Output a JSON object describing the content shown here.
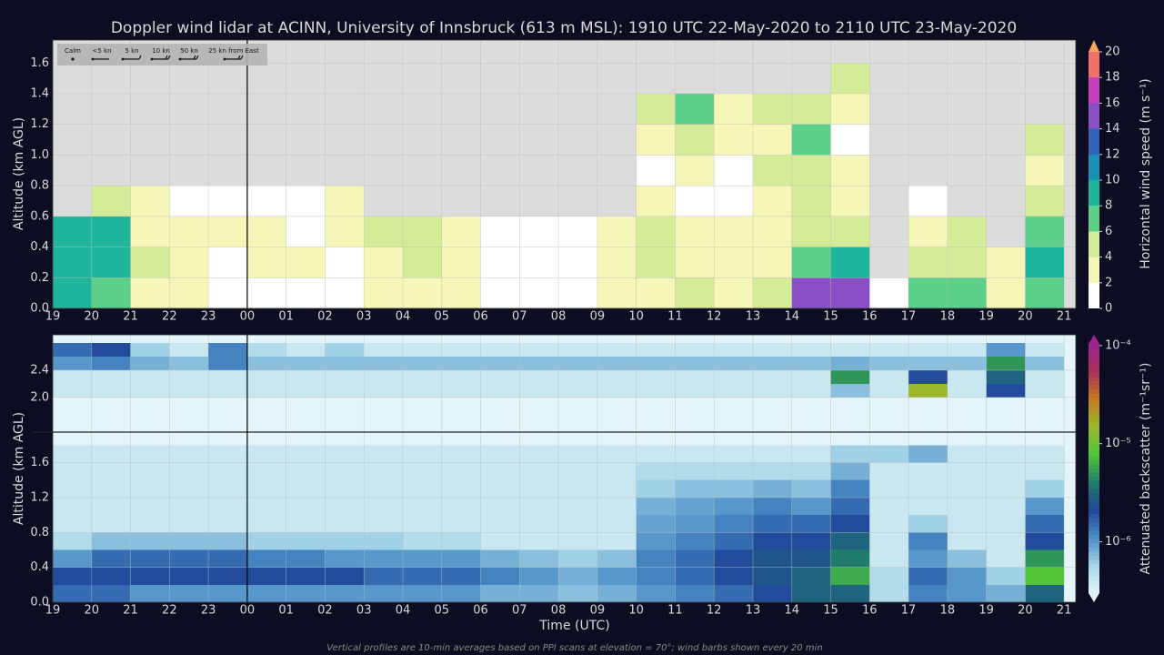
{
  "caption": "Vertical profiles are 10-min averages based on PPI scans at elevation = 70°; wind barbs shown every 20 min",
  "chart_data": [
    {
      "type": "heatmap",
      "title": "Doppler wind lidar at ACINN, University of Innsbruck (613 m MSL): 1910 UTC 22-May-2020 to 2110 UTC 23-May-2020",
      "ylabel": "Altitude (km AGL)",
      "clabel": "Horizontal wind speed (m s⁻¹)",
      "barb_legend": [
        "Calm",
        "<5 kn",
        "5 kn",
        "10 kn",
        "50 kn",
        "25 kn from East"
      ],
      "xlim": [
        19,
        45.3
      ],
      "xticks": [
        19,
        20,
        21,
        22,
        23,
        {
          "value": 24,
          "label": "00"
        },
        {
          "value": 25,
          "label": "01"
        },
        {
          "value": 26,
          "label": "02"
        },
        {
          "value": 27,
          "label": "03"
        },
        {
          "value": 28,
          "label": "04"
        },
        {
          "value": 29,
          "label": "05"
        },
        {
          "value": 30,
          "label": "06"
        },
        {
          "value": 31,
          "label": "07"
        },
        {
          "value": 32,
          "label": "08"
        },
        {
          "value": 33,
          "label": "09"
        },
        {
          "value": 34,
          "label": "10"
        },
        {
          "value": 35,
          "label": "11"
        },
        {
          "value": 36,
          "label": "12"
        },
        {
          "value": 37,
          "label": "13"
        },
        {
          "value": 38,
          "label": "14"
        },
        {
          "value": 39,
          "label": "15"
        },
        {
          "value": 40,
          "label": "16"
        },
        {
          "value": 41,
          "label": "17"
        },
        {
          "value": 42,
          "label": "18"
        },
        {
          "value": 43,
          "label": "19"
        },
        {
          "value": 44,
          "label": "20"
        },
        {
          "value": 45,
          "label": "21"
        }
      ],
      "ylim": [
        0,
        1.75
      ],
      "yticks": [
        {
          "value": 0,
          "label": "0.0"
        },
        0.2,
        0.4,
        0.6,
        0.8,
        {
          "value": 1,
          "label": "1.0"
        },
        1.2,
        1.4,
        1.6
      ],
      "grid": true,
      "vline": 24,
      "clim": [
        0,
        20
      ],
      "cticks": [
        0,
        2,
        4,
        6,
        8,
        10,
        12,
        14,
        16,
        18,
        20
      ],
      "log": false,
      "colors": [
        "#ffffff",
        "#f5f6b8",
        "#d4ec98",
        "#5ccf8a",
        "#1fb59c",
        "#1a8fb8",
        "#2f62b8",
        "#8a4fc4",
        "#c63fbf",
        "#f0706a"
      ],
      "extend_color": "#f7a55a",
      "x": [
        19.5,
        20.5,
        21.5,
        22.5,
        23.5,
        24.5,
        25.5,
        26.5,
        27.5,
        28.5,
        29.5,
        30.5,
        31.5,
        32.5,
        33.5,
        34.5,
        35.5,
        36.5,
        37.5,
        38.5,
        39.5,
        40.5,
        41.5,
        42.5,
        43.5,
        44.5
      ],
      "y": [
        0.1,
        0.3,
        0.5,
        0.7,
        0.9,
        1.1,
        1.3,
        1.5
      ],
      "values": [
        [
          8,
          9,
          8,
          null,
          null,
          null,
          null,
          null
        ],
        [
          6,
          8,
          9,
          5,
          null,
          null,
          null,
          null
        ],
        [
          3,
          4,
          3,
          2,
          null,
          null,
          null,
          null
        ],
        [
          2,
          3,
          2,
          1,
          null,
          null,
          null,
          null
        ],
        [
          1,
          1,
          2,
          1,
          null,
          null,
          null,
          null
        ],
        [
          1,
          2,
          2,
          1,
          null,
          null,
          null,
          null
        ],
        [
          1,
          2,
          1,
          1,
          null,
          null,
          null,
          null
        ],
        [
          1,
          1,
          2,
          3,
          null,
          null,
          null,
          null
        ],
        [
          2,
          3,
          4,
          null,
          null,
          null,
          null,
          null
        ],
        [
          3,
          5,
          4,
          null,
          null,
          null,
          null,
          null
        ],
        [
          2,
          3,
          2,
          null,
          null,
          null,
          null,
          null
        ],
        [
          1,
          1,
          1,
          null,
          null,
          null,
          null,
          null
        ],
        [
          1,
          1,
          1,
          null,
          null,
          null,
          null,
          null
        ],
        [
          1,
          1,
          1,
          null,
          null,
          null,
          null,
          null
        ],
        [
          2,
          3,
          3,
          null,
          null,
          null,
          null,
          null
        ],
        [
          3,
          4,
          4,
          2,
          1,
          3,
          5,
          null
        ],
        [
          4,
          3,
          2,
          1,
          2,
          4,
          6,
          null
        ],
        [
          3,
          2,
          2,
          1,
          1,
          3,
          3,
          null
        ],
        [
          4,
          3,
          3,
          3,
          4,
          3,
          4,
          null
        ],
        [
          14,
          6,
          5,
          4,
          5,
          6,
          4,
          null
        ],
        [
          15,
          9,
          4,
          2,
          2,
          1,
          3,
          4
        ],
        [
          1,
          null,
          null,
          null,
          null,
          null,
          null,
          null
        ],
        [
          6,
          5,
          3,
          1,
          null,
          null,
          null,
          null
        ],
        [
          6,
          5,
          4,
          null,
          null,
          null,
          null,
          null
        ],
        [
          3,
          3,
          null,
          null,
          null,
          null,
          null,
          null
        ],
        [
          7,
          8,
          6,
          4,
          3,
          4,
          null,
          null
        ]
      ]
    },
    {
      "type": "heatmap",
      "ylabel": "Altitude (km AGL)",
      "xlabel": "Time (UTC)",
      "clabel": "Attenuated backscatter (m⁻¹sr⁻¹)",
      "xlim": [
        19,
        45.3
      ],
      "xticks": [
        19,
        20,
        21,
        22,
        23,
        {
          "value": 24,
          "label": "00"
        },
        {
          "value": 25,
          "label": "01"
        },
        {
          "value": 26,
          "label": "02"
        },
        {
          "value": 27,
          "label": "03"
        },
        {
          "value": 28,
          "label": "04"
        },
        {
          "value": 29,
          "label": "05"
        },
        {
          "value": 30,
          "label": "06"
        },
        {
          "value": 31,
          "label": "07"
        },
        {
          "value": 32,
          "label": "08"
        },
        {
          "value": 33,
          "label": "09"
        },
        {
          "value": 34,
          "label": "10"
        },
        {
          "value": 35,
          "label": "11"
        },
        {
          "value": 36,
          "label": "12"
        },
        {
          "value": 37,
          "label": "13"
        },
        {
          "value": 38,
          "label": "14"
        },
        {
          "value": 39,
          "label": "15"
        },
        {
          "value": 40,
          "label": "16"
        },
        {
          "value": 41,
          "label": "17"
        },
        {
          "value": 42,
          "label": "18"
        },
        {
          "value": 43,
          "label": "19"
        },
        {
          "value": 44,
          "label": "20"
        },
        {
          "value": 45,
          "label": "21"
        }
      ],
      "ylim": [
        0,
        1.95
      ],
      "yticks": [
        {
          "value": 0,
          "label": "0.0"
        },
        0.4,
        0.8,
        1.2,
        1.6
      ],
      "ylim_upper": [
        1.49,
        2.92
      ],
      "yticks_upper": [
        {
          "value": 2,
          "label": "2.0"
        },
        2.4
      ],
      "grid": true,
      "vline": 24,
      "clim": [
        3e-07,
        0.000104
      ],
      "log": true,
      "cticks": [
        {
          "value": 1e-06,
          "label": "10⁻⁶"
        },
        {
          "value": 1e-05,
          "label": "10⁻⁵"
        },
        {
          "value": 0.0001,
          "label": "10⁻⁴"
        }
      ],
      "colors": [
        "#e4f4f8",
        "#a6d6e8",
        "#4a8cc6",
        "#1f4697",
        "#1f7f6a",
        "#4fc63a",
        "#9bb82a",
        "#c47a1e",
        "#a8305a",
        "#9a2490"
      ],
      "x": [
        19.5,
        20.5,
        21.5,
        22.5,
        23.5,
        24.5,
        25.5,
        26.5,
        27.5,
        28.5,
        29.5,
        30.5,
        31.5,
        32.5,
        33.5,
        34.5,
        35.5,
        36.5,
        37.5,
        38.5,
        39.5,
        40.5,
        41.5,
        42.5,
        43.5,
        44.5
      ],
      "y": [
        0.1,
        0.3,
        0.5,
        0.7,
        0.9,
        1.1,
        1.3,
        1.5,
        1.7,
        2.1,
        2.3,
        2.5,
        2.7
      ],
      "values": [
        [
          1.5e-06,
          2e-06,
          1e-06,
          5e-07,
          4e-07,
          4e-07,
          4e-07,
          4e-07,
          4e-07,
          4e-07,
          4e-07,
          1e-06,
          1.5e-06
        ],
        [
          1.5e-06,
          2e-06,
          1.5e-06,
          7e-07,
          4e-07,
          4e-07,
          4e-07,
          4e-07,
          4e-07,
          4e-07,
          4e-07,
          1.2e-06,
          2e-06
        ],
        [
          1e-06,
          2e-06,
          1.5e-06,
          7e-07,
          4e-07,
          4e-07,
          4e-07,
          4e-07,
          4e-07,
          4e-07,
          4e-07,
          8e-07,
          6e-07
        ],
        [
          1e-06,
          2e-06,
          1.5e-06,
          7e-07,
          4e-07,
          4e-07,
          4e-07,
          4e-07,
          4e-07,
          4e-07,
          4e-07,
          7e-07,
          4e-07
        ],
        [
          1e-06,
          2e-06,
          1.5e-06,
          7e-07,
          4e-07,
          4e-07,
          4e-07,
          4e-07,
          4e-07,
          4e-07,
          4e-07,
          1.2e-06,
          1.2e-06
        ],
        [
          1e-06,
          2e-06,
          1.2e-06,
          6e-07,
          4e-07,
          4e-07,
          4e-07,
          4e-07,
          4e-07,
          4e-07,
          4e-07,
          7e-07,
          5e-07
        ],
        [
          1e-06,
          2e-06,
          1.2e-06,
          6e-07,
          4e-07,
          4e-07,
          4e-07,
          4e-07,
          4e-07,
          4e-07,
          4e-07,
          7e-07,
          4e-07
        ],
        [
          1e-06,
          2e-06,
          1e-06,
          6e-07,
          4e-07,
          4e-07,
          4e-07,
          4e-07,
          4e-07,
          4e-07,
          4e-07,
          7e-07,
          6e-07
        ],
        [
          1e-06,
          1.5e-06,
          1e-06,
          6e-07,
          4e-07,
          4e-07,
          4e-07,
          4e-07,
          4e-07,
          4e-07,
          4e-07,
          7e-07,
          4e-07
        ],
        [
          1e-06,
          1.5e-06,
          1e-06,
          5e-07,
          4e-07,
          4e-07,
          4e-07,
          4e-07,
          4e-07,
          4e-07,
          4e-07,
          7e-07,
          4e-07
        ],
        [
          1e-06,
          1.5e-06,
          1e-06,
          5e-07,
          4e-07,
          4e-07,
          4e-07,
          4e-07,
          4e-07,
          4e-07,
          4e-07,
          7e-07,
          4e-07
        ],
        [
          8e-07,
          1.2e-06,
          8e-07,
          4e-07,
          4e-07,
          4e-07,
          4e-07,
          4e-07,
          4e-07,
          4e-07,
          4e-07,
          7e-07,
          4e-07
        ],
        [
          8e-07,
          1e-06,
          7e-07,
          4e-07,
          4e-07,
          4e-07,
          4e-07,
          4e-07,
          4e-07,
          4e-07,
          4e-07,
          7e-07,
          4e-07
        ],
        [
          7e-07,
          8e-07,
          6e-07,
          4e-07,
          4e-07,
          4e-07,
          4e-07,
          4e-07,
          4e-07,
          4e-07,
          4e-07,
          7e-07,
          4e-07
        ],
        [
          8e-07,
          1e-06,
          7e-07,
          4e-07,
          4e-07,
          4e-07,
          4e-07,
          4e-07,
          4e-07,
          4e-07,
          4e-07,
          7e-07,
          4e-07
        ],
        [
          1e-06,
          1.2e-06,
          1.2e-06,
          1e-06,
          9e-07,
          8e-07,
          6e-07,
          5e-07,
          4e-07,
          4e-07,
          4e-07,
          7e-07,
          4e-07
        ],
        [
          1.2e-06,
          1.5e-06,
          1.5e-06,
          1.2e-06,
          1e-06,
          9e-07,
          7e-07,
          5e-07,
          4e-07,
          4e-07,
          4e-07,
          7e-07,
          4e-07
        ],
        [
          1.5e-06,
          2e-06,
          2e-06,
          1.5e-06,
          1.2e-06,
          1e-06,
          7e-07,
          5e-07,
          4e-07,
          4e-07,
          4e-07,
          7e-07,
          4e-07
        ],
        [
          2e-06,
          2.5e-06,
          2.5e-06,
          2e-06,
          1.5e-06,
          1.2e-06,
          8e-07,
          5e-07,
          4e-07,
          4e-07,
          4e-07,
          7e-07,
          4e-07
        ],
        [
          3e-06,
          3e-06,
          2.5e-06,
          2e-06,
          1.5e-06,
          1e-06,
          7e-07,
          5e-07,
          4e-07,
          4e-07,
          4e-07,
          7e-07,
          4e-07
        ],
        [
          3e-06,
          6e-06,
          4e-06,
          3e-06,
          2e-06,
          1.5e-06,
          1.2e-06,
          8e-07,
          6e-07,
          7e-07,
          5e-06,
          8e-07,
          4e-07
        ],
        [
          5e-07,
          5e-07,
          4e-07,
          4e-07,
          4e-07,
          4e-07,
          4e-07,
          4e-07,
          6e-07,
          4e-07,
          4e-07,
          7e-07,
          4e-07
        ],
        [
          1.2e-06,
          1.5e-06,
          1e-06,
          1.2e-06,
          6e-07,
          4e-07,
          4e-07,
          4e-07,
          8e-07,
          1.5e-05,
          2e-06,
          7e-07,
          4e-07
        ],
        [
          1e-06,
          1e-06,
          7e-07,
          4e-07,
          4e-07,
          4e-07,
          4e-07,
          4e-07,
          4e-07,
          4e-07,
          4e-07,
          7e-07,
          4e-07
        ],
        [
          8e-07,
          6e-07,
          4e-07,
          4e-07,
          4e-07,
          4e-07,
          4e-07,
          4e-07,
          4e-07,
          2e-06,
          3e-06,
          5e-06,
          1e-06
        ],
        [
          3e-06,
          8e-06,
          5e-06,
          2e-06,
          1.5e-06,
          1e-06,
          6e-07,
          4e-07,
          4e-07,
          4e-07,
          4e-07,
          7e-07,
          4e-07
        ]
      ]
    }
  ]
}
